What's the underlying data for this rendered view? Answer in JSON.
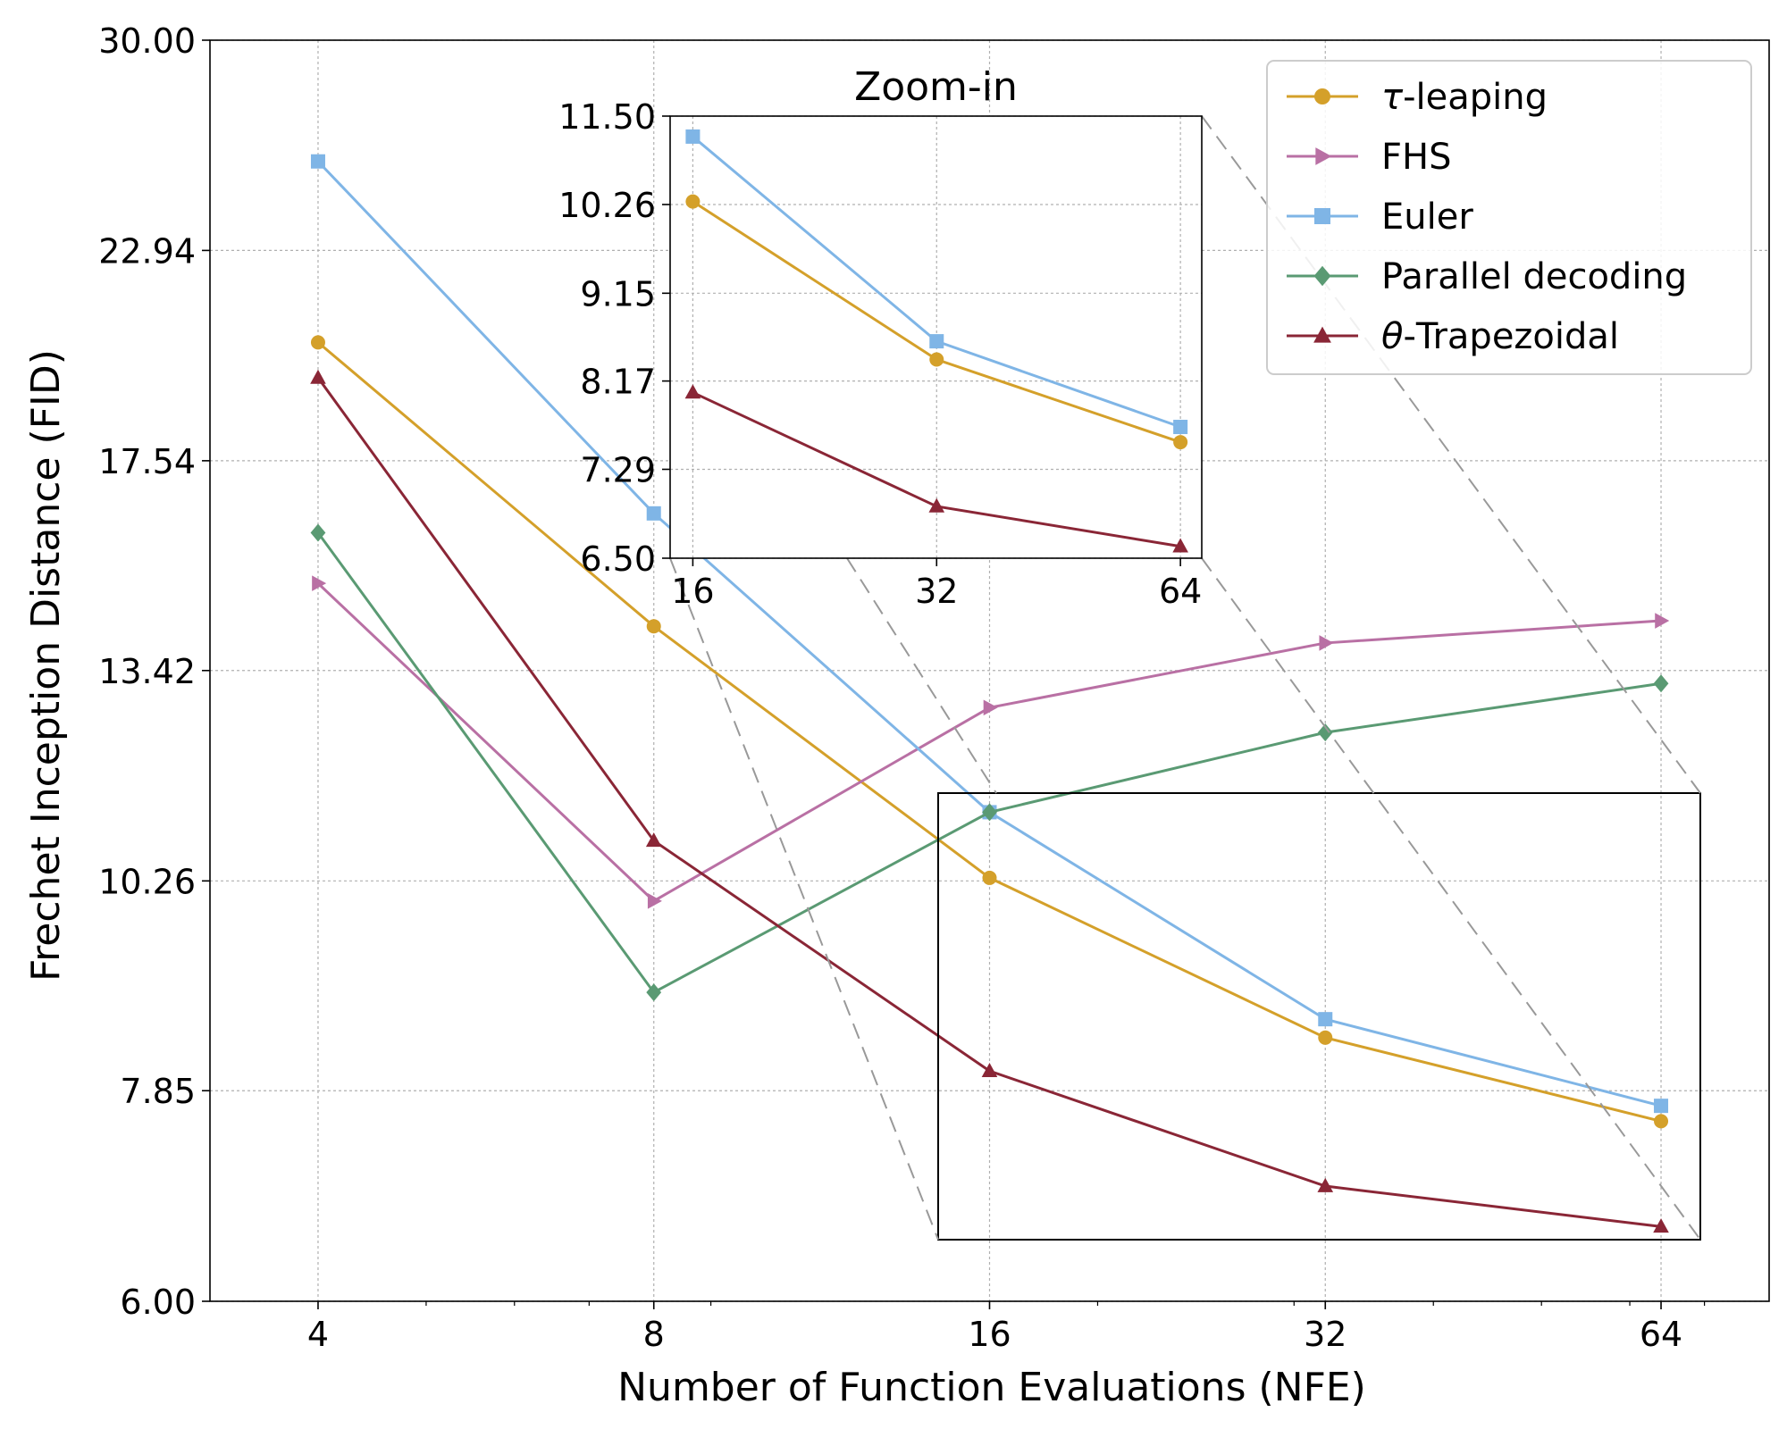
{
  "chart_data": {
    "type": "line",
    "xlabel": "Number of Function Evaluations (NFE)",
    "ylabel": "Frechet Inception Distance (FID)",
    "x_scale": "log2",
    "y_scale": "log",
    "x": [
      4,
      8,
      16,
      32,
      64
    ],
    "x_tick_labels": [
      "4",
      "8",
      "16",
      "32",
      "64"
    ],
    "xlim": [
      3.2,
      80
    ],
    "ylim": [
      6.0,
      30.0
    ],
    "y_ticks": [
      6.0,
      7.85,
      10.26,
      13.42,
      17.54,
      22.94,
      30.0
    ],
    "y_tick_labels": [
      "6.00",
      "7.85",
      "10.26",
      "13.42",
      "17.54",
      "22.94",
      "30.00"
    ],
    "grid": true,
    "legend_position": "top-right",
    "series": [
      {
        "name": "τ-leaping",
        "name_italic": "τ",
        "name_rest": "-leaping",
        "color": "#D4A02A",
        "marker": "circle",
        "values": [
          20.4,
          14.2,
          10.3,
          8.4,
          7.55
        ]
      },
      {
        "name": "FHS",
        "name_italic": "",
        "name_rest": "FHS",
        "color": "#B970A4",
        "marker": "triangle-right",
        "values": [
          15.0,
          10.0,
          12.8,
          13.9,
          14.3
        ]
      },
      {
        "name": "Euler",
        "name_italic": "",
        "name_rest": "Euler",
        "color": "#7FB5E6",
        "marker": "square",
        "values": [
          25.7,
          16.4,
          11.2,
          8.6,
          7.7
        ]
      },
      {
        "name": "Parallel decoding",
        "name_italic": "",
        "name_rest": "Parallel decoding",
        "color": "#5A9A73",
        "marker": "diamond",
        "values": [
          16.0,
          8.9,
          11.2,
          12.4,
          13.2
        ]
      },
      {
        "name": "θ-Trapezoidal",
        "name_italic": "θ",
        "name_rest": "-Trapezoidal",
        "color": "#8A2636",
        "marker": "triangle-up",
        "values": [
          19.5,
          10.8,
          8.05,
          6.95,
          6.6
        ]
      }
    ],
    "inset": {
      "title": "Zoom-in",
      "x": [
        16,
        32,
        64
      ],
      "x_tick_labels": [
        "16",
        "32",
        "64"
      ],
      "xlim": [
        15,
        68
      ],
      "ylim": [
        6.5,
        11.5
      ],
      "y_ticks": [
        6.5,
        7.29,
        8.17,
        9.15,
        10.26,
        11.5
      ],
      "y_tick_labels": [
        "6.50",
        "7.29",
        "8.17",
        "9.15",
        "10.26",
        "11.50"
      ],
      "series_included": [
        "τ-leaping",
        "Euler",
        "θ-Trapezoidal"
      ]
    }
  }
}
